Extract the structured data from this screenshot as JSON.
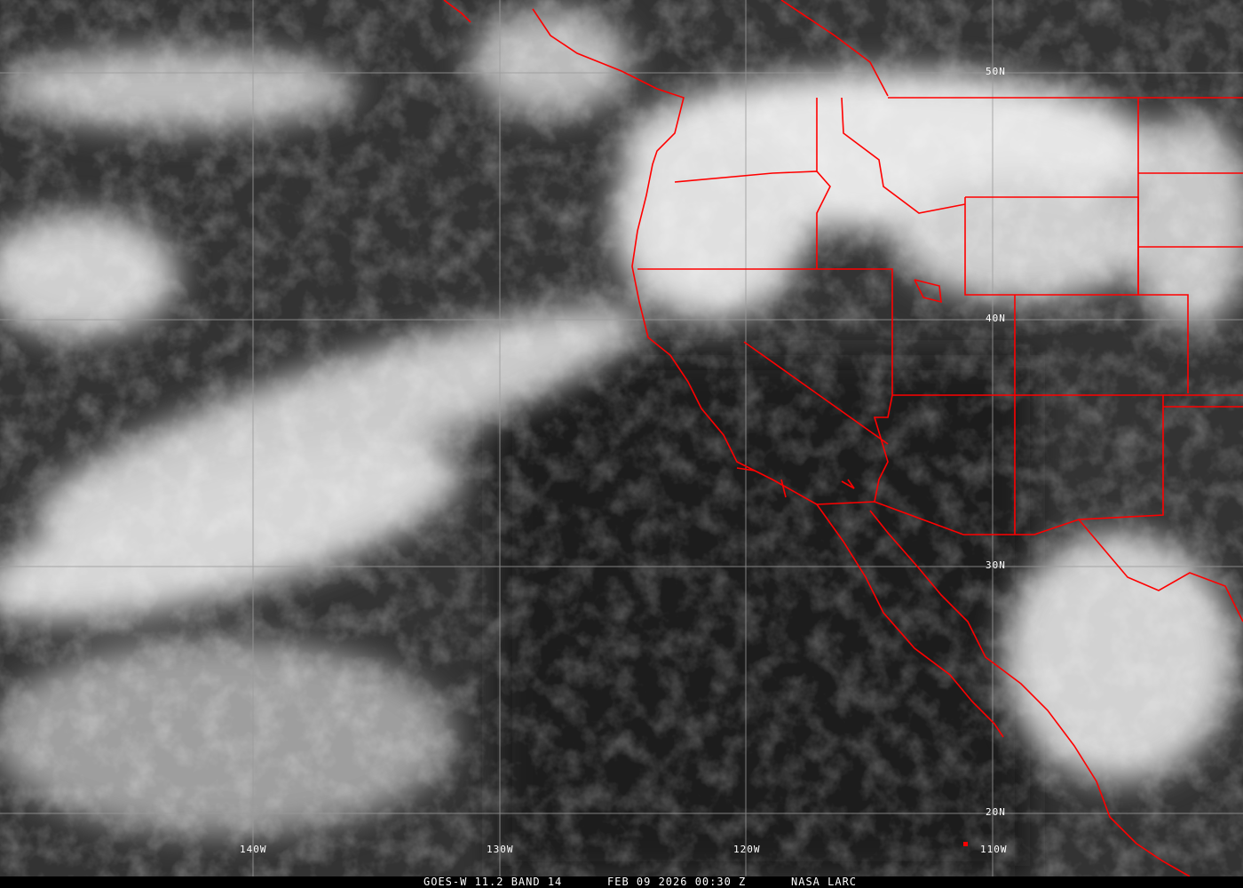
{
  "image": {
    "type": "satellite-infrared",
    "colors": {
      "borders": "#ff0000",
      "gridlines": "#9a9a9a",
      "labels": "#ffffff",
      "caption_bg": "#000000"
    }
  },
  "grid": {
    "latitudes": [
      "50N",
      "40N",
      "30N",
      "20N"
    ],
    "longitudes": [
      "140W",
      "130W",
      "120W",
      "110W"
    ]
  },
  "caption": {
    "satellite": "GOES-W 11.2 BAND 14",
    "datetime": "FEB 09 2026 00:30 Z",
    "source": "NASA LARC"
  }
}
